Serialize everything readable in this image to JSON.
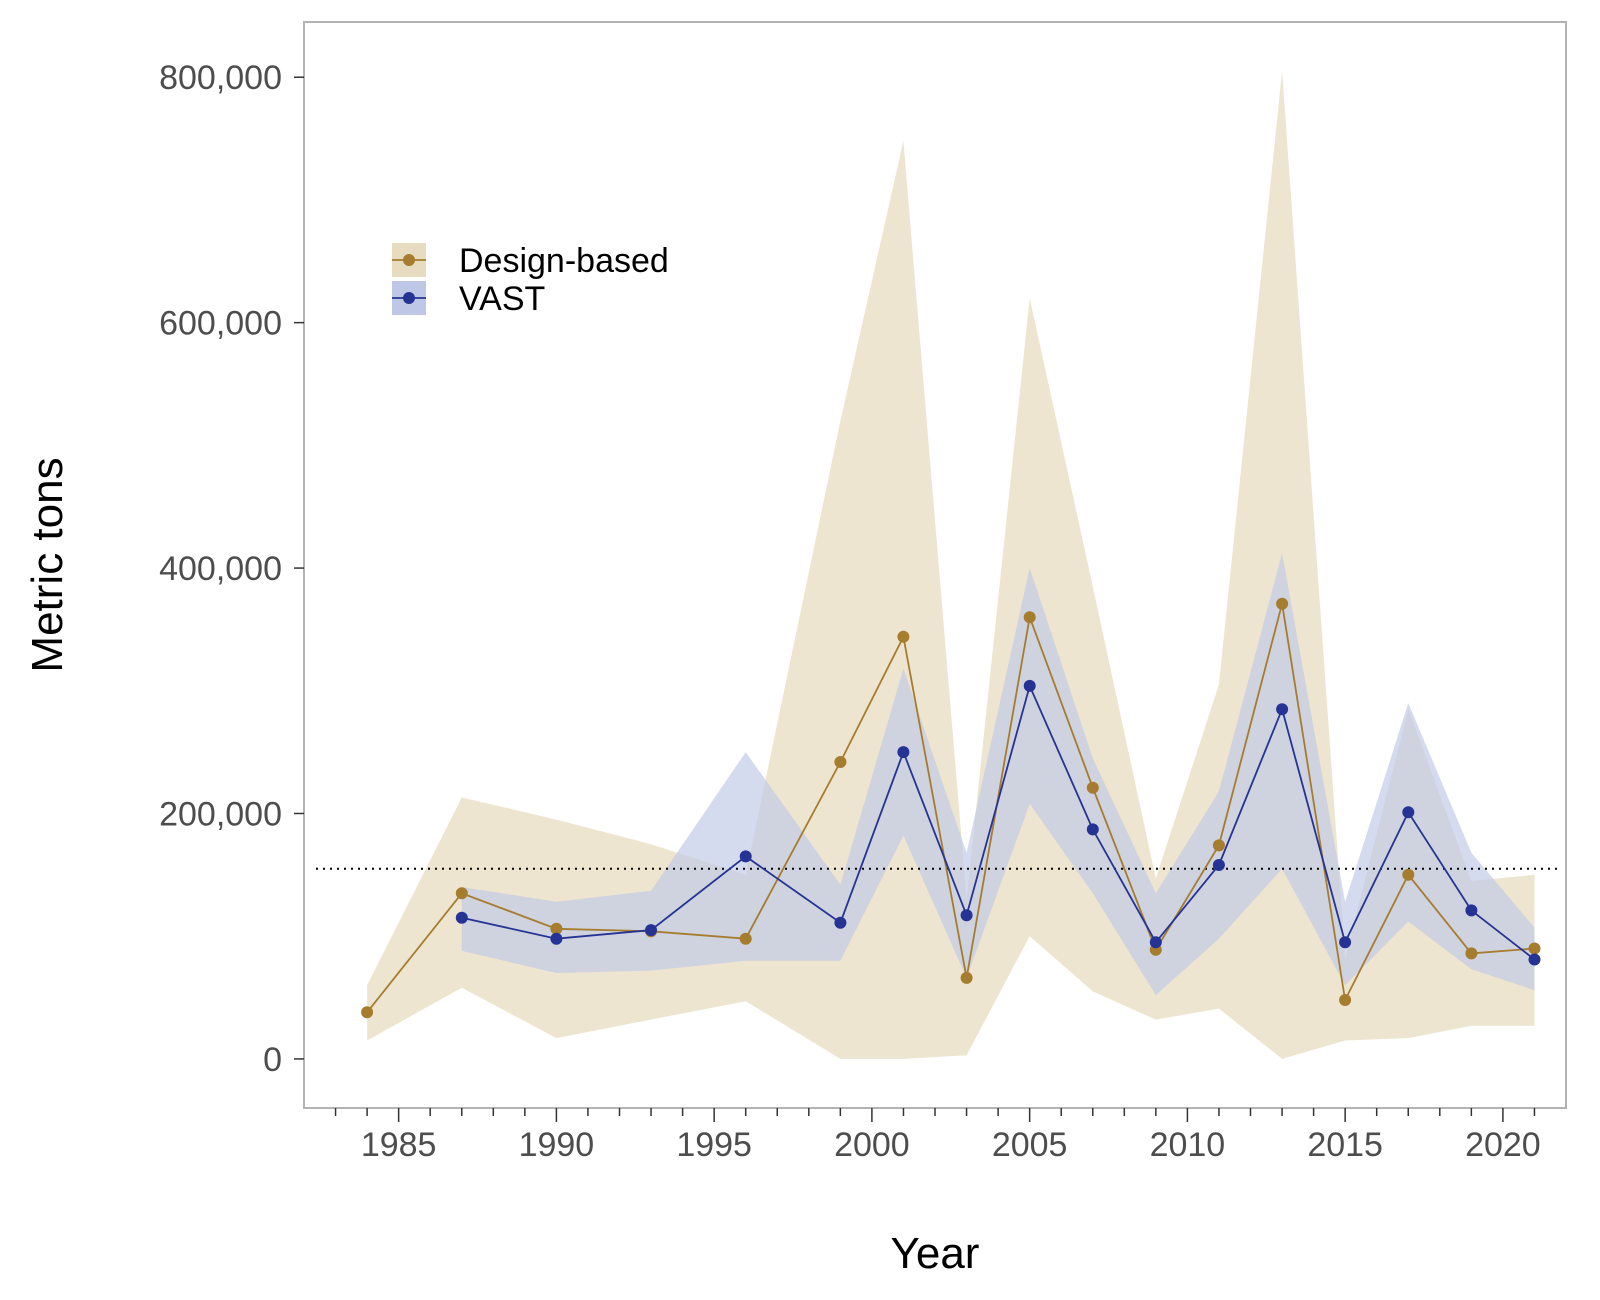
{
  "chart_data": {
    "type": "line",
    "title": "",
    "xlabel": "Year",
    "ylabel": "Metric tons",
    "xlim": [
      1982,
      2022
    ],
    "ylim": [
      -40000,
      845000
    ],
    "x_ticks": [
      1985,
      1990,
      1995,
      2000,
      2005,
      2010,
      2015,
      2020
    ],
    "x_tick_labels": [
      "1985",
      "1990",
      "1995",
      "2000",
      "2005",
      "2010",
      "2015",
      "2020"
    ],
    "y_ticks": [
      0,
      200000,
      400000,
      600000,
      800000
    ],
    "y_tick_labels": [
      "0",
      "200,000",
      "400,000",
      "600,000",
      "800,000"
    ],
    "grid": false,
    "legend_position": "top-left",
    "reference_line": {
      "y": 155000,
      "style": "dotted",
      "color": "#000000"
    },
    "series": [
      {
        "name": "Design-based",
        "color": "#a67c2e",
        "band_color": "#e8dcc0",
        "x": [
          1984,
          1987,
          1990,
          1993,
          1996,
          1999,
          2001,
          2003,
          2005,
          2007,
          2009,
          2011,
          2013,
          2015,
          2017,
          2019,
          2021
        ],
        "y": [
          38000,
          135000,
          106000,
          104000,
          98000,
          242000,
          344000,
          66000,
          360000,
          221000,
          89000,
          174000,
          371000,
          48000,
          150000,
          86000,
          90000
        ],
        "lower": [
          15000,
          58000,
          17000,
          32000,
          47000,
          0,
          0,
          3000,
          100000,
          55000,
          32000,
          41000,
          0,
          15000,
          17000,
          27000,
          27000
        ],
        "upper": [
          60000,
          213000,
          195000,
          175000,
          150000,
          520000,
          748000,
          130000,
          620000,
          385000,
          147000,
          305000,
          805000,
          82000,
          285000,
          145000,
          150000
        ]
      },
      {
        "name": "VAST",
        "color": "#253494",
        "band_color": "#bfc7e6",
        "x": [
          1987,
          1990,
          1993,
          1996,
          1999,
          2001,
          2003,
          2005,
          2007,
          2009,
          2011,
          2013,
          2015,
          2017,
          2019,
          2021
        ],
        "y": [
          115000,
          98000,
          105000,
          165000,
          111000,
          250000,
          117000,
          304000,
          187000,
          95000,
          158000,
          285000,
          95000,
          201000,
          121000,
          81000
        ],
        "lower": [
          88000,
          70000,
          72000,
          80000,
          80000,
          182000,
          66000,
          208000,
          135000,
          52000,
          98000,
          155000,
          60000,
          112000,
          73000,
          56000
        ],
        "upper": [
          140000,
          128000,
          137000,
          250000,
          142000,
          318000,
          168000,
          400000,
          245000,
          135000,
          218000,
          412000,
          128000,
          290000,
          168000,
          107000
        ]
      }
    ]
  }
}
